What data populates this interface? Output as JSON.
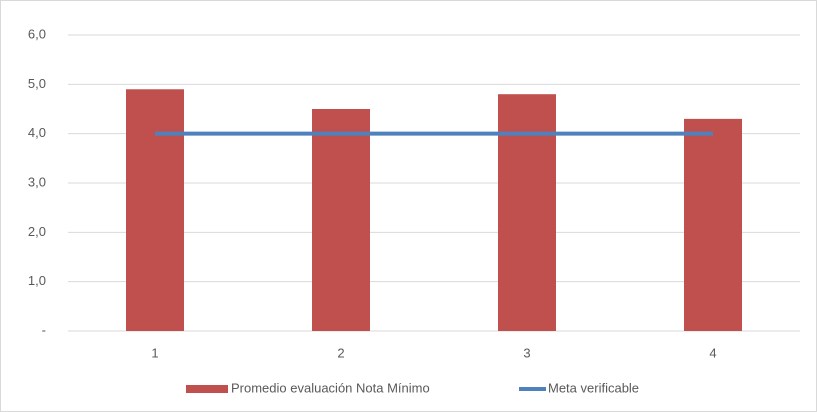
{
  "chart_data": {
    "type": "bar",
    "categories": [
      "1",
      "2",
      "3",
      "4"
    ],
    "series": [
      {
        "name": "Promedio evaluación Nota Mínimo",
        "color": "#c0504d",
        "type": "bar",
        "values": [
          4.9,
          4.5,
          4.8,
          4.3
        ]
      },
      {
        "name": "Meta verificable",
        "color": "#4f81bd",
        "type": "line",
        "values": [
          4.0,
          4.0,
          4.0,
          4.0
        ]
      }
    ],
    "ylim": [
      0,
      6
    ],
    "yticks": [
      {
        "value": 0,
        "label": "-"
      },
      {
        "value": 1,
        "label": "1,0"
      },
      {
        "value": 2,
        "label": "2,0"
      },
      {
        "value": 3,
        "label": "3,0"
      },
      {
        "value": 4,
        "label": "4,0"
      },
      {
        "value": 5,
        "label": "5,0"
      },
      {
        "value": 6,
        "label": "6,0"
      }
    ],
    "grid": true,
    "legend": "bottom"
  }
}
